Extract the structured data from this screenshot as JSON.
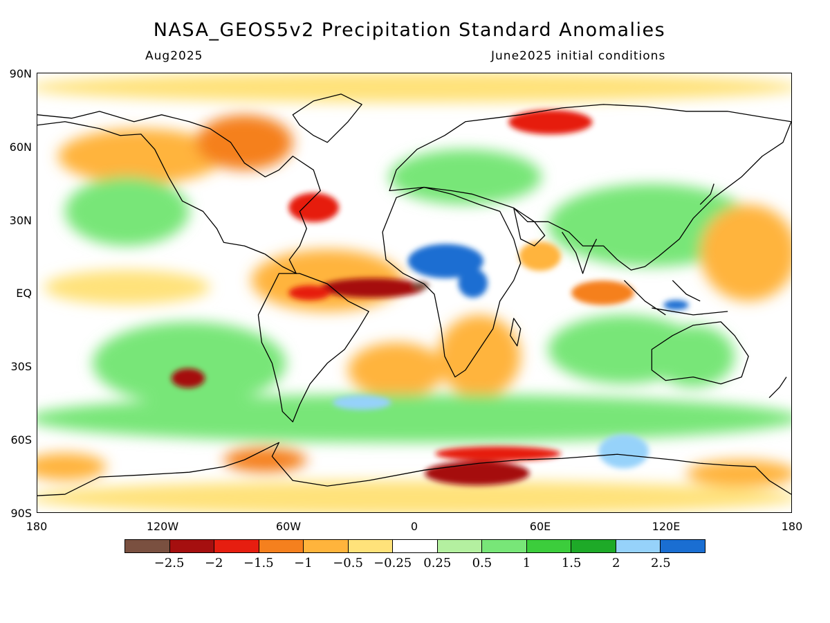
{
  "title": "NASA_GEOS5v2 Precipitation Standard Anomalies",
  "subtitle_left": "Aug2025",
  "subtitle_right": "June2025 initial conditions",
  "lat_ticks": [
    "90N",
    "60N",
    "30N",
    "EQ",
    "30S",
    "60S",
    "90S"
  ],
  "lon_ticks": [
    "180",
    "120W",
    "60W",
    "0",
    "60E",
    "120E",
    "180"
  ],
  "colorbar": {
    "labels": [
      "−2.5",
      "−2",
      "−1.5",
      "−1",
      "−0.5",
      "−0.25",
      "0.25",
      "0.5",
      "1",
      "1.5",
      "2",
      "2.5"
    ],
    "colors": [
      "#7a5040",
      "#a50f0f",
      "#e61e10",
      "#f5801e",
      "#ffb43c",
      "#ffe27a",
      "#ffffff",
      "#b4f0a0",
      "#78e678",
      "#3ccd3c",
      "#1eaa28",
      "#96d2fa",
      "#1a6ed2"
    ]
  },
  "map": {
    "background_color": "#ffffff",
    "anomaly_regions": [
      {
        "region": "tropical-atlantic-dry",
        "lon": -20,
        "lat": 2,
        "rx": 25,
        "ry": 4,
        "level": -2
      },
      {
        "region": "gulf-of-guinea-extreme-dry",
        "lon": 3,
        "lat": 3,
        "rx": 4,
        "ry": 1.5,
        "level": -2.5
      },
      {
        "region": "sahel-wet",
        "lon": 15,
        "lat": 13,
        "rx": 18,
        "ry": 7,
        "level": 2.5
      },
      {
        "region": "east-africa-wet",
        "lon": 28,
        "lat": 4,
        "rx": 7,
        "ry": 6,
        "level": 2.5
      },
      {
        "region": "maritime-continent-wet",
        "lon": 125,
        "lat": -5,
        "rx": 6,
        "ry": 2,
        "level": 2.5
      },
      {
        "region": "southern-ocean-dry",
        "lon": 30,
        "lat": -74,
        "rx": 25,
        "ry": 5,
        "level": -2
      },
      {
        "region": "antarctic-coast-dry",
        "lon": 40,
        "lat": -66,
        "rx": 30,
        "ry": 3,
        "level": -1.5
      },
      {
        "region": "south-pacific-dry",
        "lon": -108,
        "lat": -35,
        "rx": 8,
        "ry": 4,
        "level": -2
      },
      {
        "region": "north-atlantic-dry",
        "lon": -48,
        "lat": 35,
        "rx": 12,
        "ry": 6,
        "level": -1.5
      },
      {
        "region": "siberia-dry",
        "lon": 65,
        "lat": 70,
        "rx": 20,
        "ry": 5,
        "level": -1.5
      },
      {
        "region": "south-atlantic-wet",
        "lon": -25,
        "lat": -45,
        "rx": 14,
        "ry": 3,
        "level": 2
      },
      {
        "region": "indian-ocean-south-wet",
        "lon": 100,
        "lat": -65,
        "rx": 12,
        "ry": 7,
        "level": 2
      },
      {
        "region": "eastern-pacific-dry",
        "lon": -50,
        "lat": 0,
        "rx": 10,
        "ry": 3,
        "level": -1.5
      },
      {
        "region": "arabian-sea-dry",
        "lon": 60,
        "lat": 15,
        "rx": 10,
        "ry": 6,
        "level": -0.5
      },
      {
        "region": "indian-ocean-equator-dry",
        "lon": 90,
        "lat": 0,
        "rx": 15,
        "ry": 5,
        "level": -1
      }
    ]
  }
}
